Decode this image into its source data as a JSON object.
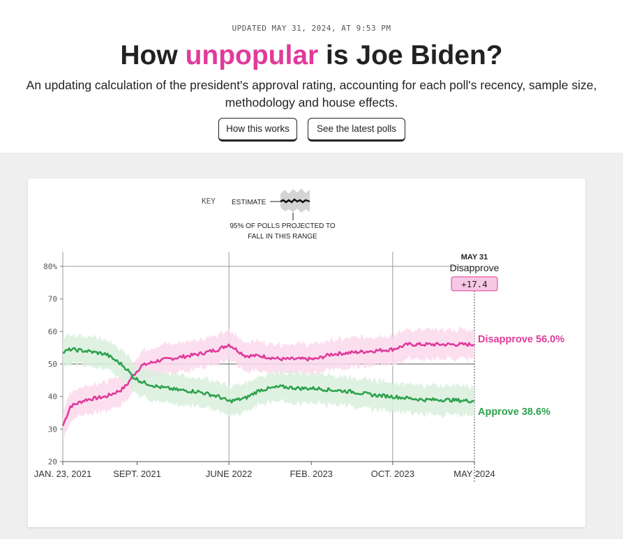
{
  "header": {
    "updated": "UPDATED MAY 31, 2024, AT 9:53 PM",
    "title_pre": "How ",
    "title_highlight": "unpopular",
    "title_post": " is Joe Biden?",
    "subtitle": "An updating calculation of the president's approval rating, accounting for each poll's recency, sample size, methodology and house effects."
  },
  "buttons": {
    "how_it_works": "How this works",
    "latest_polls": "See the latest polls"
  },
  "key": {
    "label": "KEY",
    "estimate": "ESTIMATE",
    "range_line1": "95% OF POLLS PROJECTED TO",
    "range_line2": "FALL IN THIS RANGE"
  },
  "colors": {
    "approve": "#2ea24d",
    "disapprove": "#e03a9b",
    "approve_band": "#d9f0dd",
    "disapprove_band": "#fbd9ec",
    "background": "#efefef"
  },
  "chart_data": {
    "type": "line",
    "ylim": [
      20,
      80
    ],
    "yticks": [
      "20",
      "30",
      "40",
      "50",
      "60",
      "70",
      "80%"
    ],
    "xticks": [
      "JAN. 23, 2021",
      "SEPT. 2021",
      "JUNE 2022",
      "FEB. 2023",
      "OCT. 2023",
      "MAY 2024"
    ],
    "x": [
      "2021-01-23",
      "2021-02-15",
      "2021-04-01",
      "2021-06-01",
      "2021-07-15",
      "2021-08-01",
      "2021-08-20",
      "2021-09-15",
      "2021-11-01",
      "2022-01-01",
      "2022-03-01",
      "2022-05-01",
      "2022-06-01",
      "2022-07-20",
      "2022-09-01",
      "2022-11-01",
      "2023-01-01",
      "2023-02-15",
      "2023-04-01",
      "2023-06-01",
      "2023-08-01",
      "2023-10-01",
      "2023-11-15",
      "2024-01-01",
      "2024-03-01",
      "2024-05-31"
    ],
    "series": [
      {
        "name": "Disapprove",
        "values": [
          31.0,
          37.0,
          39.0,
          40.0,
          42.0,
          43.5,
          46.5,
          49.5,
          51.0,
          52.0,
          53.0,
          54.5,
          56.0,
          52.5,
          52.5,
          51.5,
          51.5,
          51.5,
          53.0,
          53.5,
          54.0,
          54.5,
          56.0,
          56.0,
          56.0,
          56.0
        ],
        "band": 4.5
      },
      {
        "name": "Approve",
        "values": [
          53.5,
          54.5,
          54.0,
          53.0,
          50.0,
          48.5,
          46.0,
          44.5,
          43.0,
          42.0,
          41.5,
          40.0,
          38.5,
          39.5,
          42.0,
          43.0,
          42.5,
          42.5,
          42.0,
          41.5,
          40.5,
          40.0,
          39.5,
          39.0,
          39.0,
          38.6
        ],
        "band": 4.5
      }
    ],
    "end_date_label": "MAY 31",
    "lead_label": "Disapprove",
    "net_value": "+17.4",
    "end_labels": {
      "disapprove": "Disapprove 56.0%",
      "approve": "Approve 38.6%"
    }
  }
}
